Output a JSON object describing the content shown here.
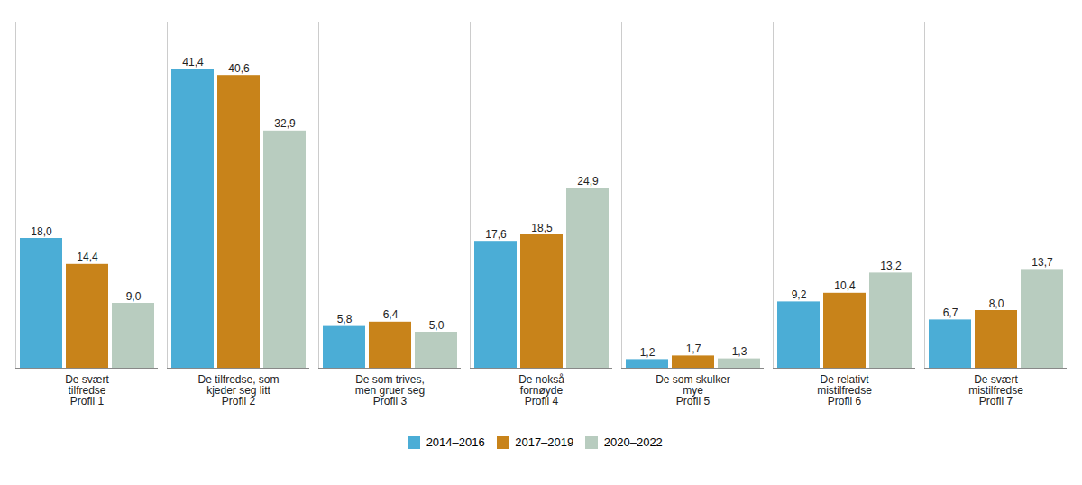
{
  "chart_data": {
    "type": "bar",
    "categories": [
      "De svært\ntilfredse\nProfil 1",
      "De tilfredse, som\nkjeder seg litt\nProfil 2",
      "De som trives,\nmen gruer seg\nProfil 3",
      "De nokså\nfornøyde\nProfil 4",
      "De som skulker\nmye\nProfil 5",
      "De relativt\nmistilfredse\nProfil 6",
      "De svært\nmistilfredse\nProfil 7"
    ],
    "series": [
      {
        "name": "2014–2016",
        "color": "#4BADD6",
        "values": [
          18.0,
          41.4,
          5.8,
          17.6,
          1.2,
          9.2,
          6.7
        ],
        "value_labels": [
          "18,0",
          "41,4",
          "5,8",
          "17,6",
          "1,2",
          "9,2",
          "6,7"
        ]
      },
      {
        "name": "2017–2019",
        "color": "#C8831A",
        "values": [
          14.4,
          40.6,
          6.4,
          18.5,
          1.7,
          10.4,
          8.0
        ],
        "value_labels": [
          "14,4",
          "40,6",
          "6,4",
          "18,5",
          "1,7",
          "10,4",
          "8,0"
        ]
      },
      {
        "name": "2020–2022",
        "color": "#B8CCBF",
        "values": [
          9.0,
          32.9,
          5.0,
          24.9,
          1.3,
          13.2,
          13.7
        ],
        "value_labels": [
          "9,0",
          "32,9",
          "5,0",
          "24,9",
          "1,3",
          "13,2",
          "13,7"
        ]
      }
    ],
    "ylim": [
      0,
      48
    ],
    "data_labels": true,
    "tick_labels": "x",
    "grid": false,
    "legend": "bottom"
  }
}
